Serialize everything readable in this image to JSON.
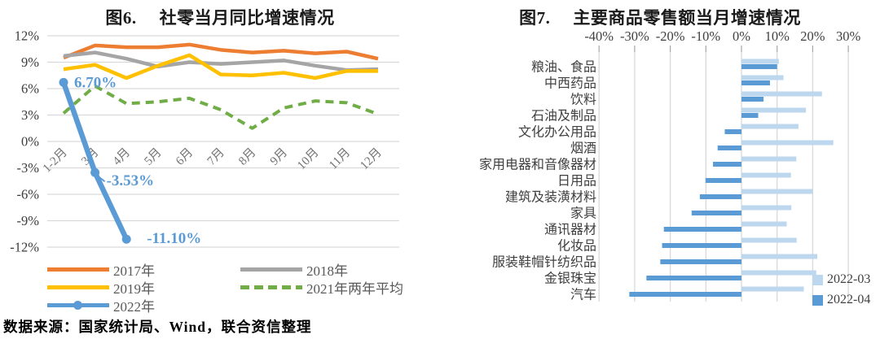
{
  "source_note": "数据来源：国家统计局、Wind，联合资信整理",
  "chart_data": [
    {
      "type": "line",
      "fig_no": "图6.",
      "title": "社零当月同比增速情况",
      "categories": [
        "1-2月",
        "3月",
        "4月",
        "5月",
        "6月",
        "7月",
        "8月",
        "9月",
        "10月",
        "11月",
        "12月"
      ],
      "ylim": [
        -12,
        12
      ],
      "ytick_step": 3,
      "ytick_suffix": "%",
      "grid": true,
      "legend_position": "bottom",
      "series": [
        {
          "name": "2017年",
          "color": "#ED7D31",
          "style": "solid",
          "values": [
            9.5,
            10.9,
            10.7,
            10.7,
            11.0,
            10.4,
            10.1,
            10.3,
            10.0,
            10.2,
            9.4
          ]
        },
        {
          "name": "2018年",
          "color": "#A5A5A5",
          "style": "solid",
          "values": [
            9.7,
            10.1,
            9.4,
            8.5,
            9.0,
            8.8,
            9.0,
            9.2,
            8.6,
            8.1,
            8.2
          ]
        },
        {
          "name": "2019年",
          "color": "#FFC000",
          "style": "solid",
          "values": [
            8.2,
            8.7,
            7.2,
            8.6,
            9.8,
            7.6,
            7.5,
            7.8,
            7.2,
            8.0,
            8.0
          ]
        },
        {
          "name": "2021年两年平均",
          "color": "#70AD47",
          "style": "dashed",
          "values": [
            3.2,
            6.3,
            4.3,
            4.5,
            4.9,
            3.6,
            1.5,
            3.8,
            4.6,
            4.4,
            3.1
          ]
        },
        {
          "name": "2022年",
          "color": "#5B9BD5",
          "style": "solid-marker",
          "values": [
            6.7,
            -3.53,
            -11.1
          ]
        }
      ],
      "point_labels": [
        {
          "series": "2022年",
          "index": 0,
          "text": "6.70%"
        },
        {
          "series": "2022年",
          "index": 1,
          "text": "-3.53%"
        },
        {
          "series": "2022年",
          "index": 2,
          "text": "-11.10%"
        }
      ]
    },
    {
      "type": "bar-horizontal",
      "fig_no": "图7.",
      "title": "主要商品零售额当月增速情况",
      "categories": [
        "粮油、食品",
        "中西药品",
        "饮料",
        "石油及制品",
        "文化办公用品",
        "烟酒",
        "家用电器和音像器材",
        "日用品",
        "建筑及装潢材料",
        "家具",
        "通讯器材",
        "化妆品",
        "服装鞋帽针纺织品",
        "金银珠宝",
        "汽车"
      ],
      "xlim": [
        -40,
        30
      ],
      "x_ticks": [
        "-40%",
        "-30%",
        "-20%",
        "-10%",
        "0%",
        "10%",
        "20%",
        "30%"
      ],
      "x_tick_values": [
        -40,
        -30,
        -20,
        -10,
        0,
        10,
        20,
        30
      ],
      "grid": true,
      "legend_position": "inside-right",
      "series": [
        {
          "name": "2022-03",
          "color": "#BDD7EE",
          "values": [
            10.5,
            11.8,
            22.6,
            18.1,
            16.0,
            25.8,
            15.4,
            13.9,
            20.0,
            14.0,
            12.7,
            15.5,
            21.3,
            21.0,
            17.5
          ]
        },
        {
          "name": "2022-04",
          "color": "#5B9BD5",
          "values": [
            10.0,
            8.0,
            6.2,
            4.7,
            -4.7,
            -6.7,
            -8.0,
            -10.1,
            -11.7,
            -14.0,
            -21.8,
            -22.3,
            -22.8,
            -26.7,
            -31.5
          ]
        }
      ]
    }
  ]
}
